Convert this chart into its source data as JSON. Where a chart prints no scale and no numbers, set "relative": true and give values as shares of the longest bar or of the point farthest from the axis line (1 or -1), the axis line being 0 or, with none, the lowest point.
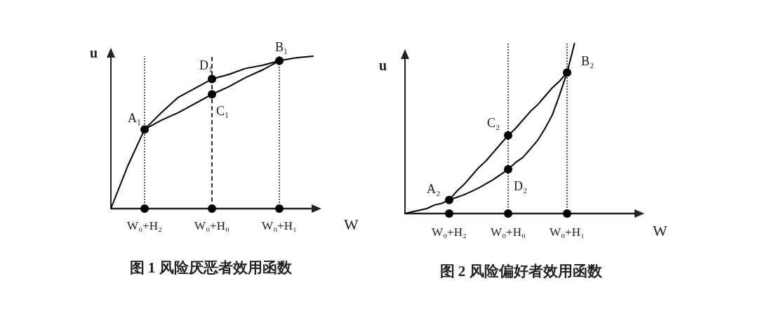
{
  "chart_data": [
    {
      "type": "line",
      "title": "图 1 风险厌恶者效用函数",
      "xlabel": "W",
      "ylabel": "u",
      "relative": true,
      "categories": [
        null,
        null,
        "W₀+H₂",
        null,
        null,
        null,
        "W₀+H₀",
        null,
        null,
        null,
        "W₀+H₁",
        null,
        null
      ],
      "series": [
        {
          "type": "line",
          "color": "#000000",
          "values": [
            0,
            0.28,
            0.52,
            0.63,
            0.73,
            0.79,
            0.85,
            0.88,
            0.92,
            0.94,
            0.97,
            0.99,
            1
          ]
        },
        {
          "type": "line",
          "color": "#000000",
          "values": [
            null,
            null,
            0.52,
            0.58,
            0.63,
            0.69,
            0.75,
            0.8,
            0.86,
            0.91,
            0.97,
            null,
            null
          ]
        },
        {
          "type": "scatter",
          "marker": "circle",
          "color": "#000000",
          "values": [
            null,
            null,
            0.52,
            null,
            null,
            null,
            0.85,
            null,
            null,
            null,
            0.97,
            null,
            null
          ]
        },
        {
          "type": "scatter",
          "marker": "circle",
          "color": "#000000",
          "values": [
            null,
            null,
            null,
            null,
            null,
            null,
            0.75,
            null,
            null,
            null,
            null,
            null,
            null
          ]
        },
        {
          "type": "scatter",
          "marker": "circle",
          "color": "#000000",
          "values": [
            null,
            null,
            0,
            null,
            null,
            null,
            0,
            null,
            null,
            null,
            0,
            null,
            null
          ]
        }
      ],
      "ref_lines": [
        {
          "axis": "x",
          "value": "W₀+H₂",
          "line_style": "dotted"
        },
        {
          "axis": "x",
          "value": "W₀+H₀",
          "line_style": "dashed"
        },
        {
          "axis": "x",
          "value": "W₀+H₁",
          "line_style": "dotted"
        }
      ],
      "annotations": [
        {
          "text": "A₁",
          "x": "W₀+H₂",
          "y": 0.52
        },
        {
          "text": "D₁",
          "x": "W₀+H₀",
          "y": 0.85
        },
        {
          "text": "C₁",
          "x": "W₀+H₀",
          "y": 0.75
        },
        {
          "text": "B₁",
          "x": "W₀+H₁",
          "y": 0.97
        }
      ]
    },
    {
      "type": "line",
      "title": "图 2 风险偏好者效用函数",
      "xlabel": "W",
      "ylabel": "u",
      "relative": true,
      "categories": [
        null,
        null,
        null,
        null,
        null,
        null,
        "W₀+H₂",
        null,
        null,
        null,
        null,
        null,
        null,
        null,
        "W₀+H₀",
        null,
        null,
        null,
        null,
        null,
        null,
        null,
        "W₀+H₁",
        null
      ],
      "series": [
        {
          "type": "line",
          "color": "#000000",
          "values": [
            0,
            0.01,
            0.02,
            0.03,
            0.05,
            0.06,
            0.08,
            0.095,
            0.11,
            0.13,
            0.15,
            0.175,
            0.2,
            0.23,
            0.26,
            0.3,
            0.33,
            0.38,
            0.43,
            0.5,
            0.58,
            0.7,
            0.83,
            1
          ]
        },
        {
          "type": "line",
          "color": "#000000",
          "values": [
            null,
            null,
            null,
            null,
            null,
            null,
            0.08,
            0.13,
            0.17,
            0.22,
            0.27,
            0.31,
            0.36,
            0.41,
            0.46,
            0.5,
            0.55,
            0.6,
            0.64,
            0.69,
            0.74,
            0.78,
            0.83,
            null
          ]
        },
        {
          "type": "scatter",
          "marker": "circle",
          "color": "#000000",
          "values": [
            null,
            null,
            null,
            null,
            null,
            null,
            0.08,
            null,
            null,
            null,
            null,
            null,
            null,
            null,
            0.26,
            null,
            null,
            null,
            null,
            null,
            null,
            null,
            0.83,
            null
          ]
        },
        {
          "type": "scatter",
          "marker": "circle",
          "color": "#000000",
          "values": [
            null,
            null,
            null,
            null,
            null,
            null,
            null,
            null,
            null,
            null,
            null,
            null,
            null,
            null,
            0.46,
            null,
            null,
            null,
            null,
            null,
            null,
            null,
            null,
            null
          ]
        },
        {
          "type": "scatter",
          "marker": "circle",
          "color": "#000000",
          "values": [
            null,
            null,
            null,
            null,
            null,
            null,
            0,
            null,
            null,
            null,
            null,
            null,
            null,
            null,
            0,
            null,
            null,
            null,
            null,
            null,
            null,
            null,
            0,
            null
          ]
        }
      ],
      "ref_lines": [
        {
          "axis": "x",
          "value": "W₀+H₀",
          "line_style": "dotted"
        },
        {
          "axis": "x",
          "value": "W₀+H₁",
          "line_style": "dotted"
        }
      ],
      "annotations": [
        {
          "text": "C₂",
          "x": "W₀+H₀",
          "y": 0.46
        },
        {
          "text": "D₂",
          "x": "W₀+H₀",
          "y": 0.26
        },
        {
          "text": "A₂",
          "x": "W₀+H₂",
          "y": 0.08
        },
        {
          "text": "B₂",
          "x": "W₀+H₁",
          "y": 0.83
        }
      ]
    }
  ]
}
